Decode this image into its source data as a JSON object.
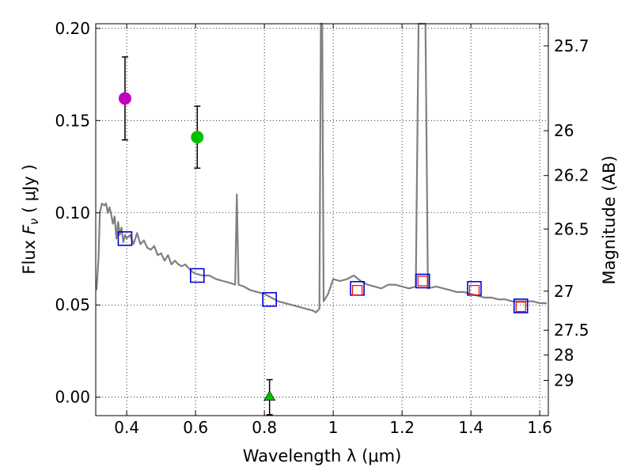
{
  "chart_data": {
    "type": "scatter",
    "title": "",
    "xlabel": "Wavelength  λ (μm)",
    "ylabel": "Flux  F_ν  ( μJy )",
    "ylabel_parts": {
      "pre": "Flux  ",
      "sym": "F",
      "sub": "ν",
      "post": "  ( μJy )"
    },
    "y2label": "Magnitude (AB)",
    "xlim": [
      0.31,
      1.625
    ],
    "ylim": [
      -0.01,
      0.2025
    ],
    "grid": true,
    "xticks": [
      0.4,
      0.6,
      0.8,
      1.0,
      1.2,
      1.4,
      1.6
    ],
    "xtick_labels": [
      "0.4",
      "0.6",
      "0.8",
      "1",
      "1.2",
      "1.4",
      "1.6"
    ],
    "yticks": [
      0.0,
      0.05,
      0.1,
      0.15,
      0.2
    ],
    "ytick_labels": [
      "0.00",
      "0.05",
      "0.10",
      "0.15",
      "0.20"
    ],
    "mag_ticks": [
      {
        "label": "25.7",
        "flux": 0.1905
      },
      {
        "label": "26",
        "flux": 0.1445
      },
      {
        "label": "26.2",
        "flux": 0.1202
      },
      {
        "label": "26.5",
        "flux": 0.0912
      },
      {
        "label": "27",
        "flux": 0.0575
      },
      {
        "label": "27.5",
        "flux": 0.0363
      },
      {
        "label": "28",
        "flux": 0.0229
      },
      {
        "label": "29",
        "flux": 0.0091
      }
    ],
    "observed_points": [
      {
        "name": "purple-point",
        "x": 0.395,
        "y": 0.162,
        "err": 0.0225,
        "color": "#bf00bf",
        "marker": "circle"
      },
      {
        "name": "green-point",
        "x": 0.605,
        "y": 0.141,
        "err": 0.0168,
        "color": "#00c000",
        "marker": "circle"
      },
      {
        "name": "green-limit",
        "x": 0.815,
        "y": 0.0,
        "err": 0.0095,
        "color": "#00c000",
        "marker": "triangle"
      }
    ],
    "model_squares": [
      {
        "x": 0.395,
        "y": 0.086
      },
      {
        "x": 0.605,
        "y": 0.066
      },
      {
        "x": 0.815,
        "y": 0.053
      },
      {
        "x": 1.07,
        "y": 0.059
      },
      {
        "x": 1.26,
        "y": 0.063
      },
      {
        "x": 1.41,
        "y": 0.059
      },
      {
        "x": 1.545,
        "y": 0.0495
      }
    ],
    "filter_squares": [
      {
        "x": 1.07,
        "y": 0.058
      },
      {
        "x": 1.26,
        "y": 0.063
      },
      {
        "x": 1.41,
        "y": 0.058
      },
      {
        "x": 1.545,
        "y": 0.049
      }
    ],
    "template_spectrum": {
      "color": "#808080",
      "points": [
        [
          0.312,
          0.058
        ],
        [
          0.318,
          0.075
        ],
        [
          0.322,
          0.1
        ],
        [
          0.328,
          0.105
        ],
        [
          0.335,
          0.104
        ],
        [
          0.34,
          0.105
        ],
        [
          0.345,
          0.1
        ],
        [
          0.35,
          0.103
        ],
        [
          0.355,
          0.099
        ],
        [
          0.36,
          0.094
        ],
        [
          0.365,
          0.098
        ],
        [
          0.37,
          0.086
        ],
        [
          0.375,
          0.095
        ],
        [
          0.38,
          0.088
        ],
        [
          0.385,
          0.092
        ],
        [
          0.39,
          0.084
        ],
        [
          0.395,
          0.088
        ],
        [
          0.4,
          0.086
        ],
        [
          0.41,
          0.088
        ],
        [
          0.42,
          0.083
        ],
        [
          0.43,
          0.089
        ],
        [
          0.44,
          0.083
        ],
        [
          0.45,
          0.085
        ],
        [
          0.46,
          0.081
        ],
        [
          0.47,
          0.08
        ],
        [
          0.48,
          0.082
        ],
        [
          0.49,
          0.077
        ],
        [
          0.5,
          0.078
        ],
        [
          0.51,
          0.074
        ],
        [
          0.52,
          0.077
        ],
        [
          0.53,
          0.072
        ],
        [
          0.54,
          0.074
        ],
        [
          0.55,
          0.072
        ],
        [
          0.56,
          0.071
        ],
        [
          0.57,
          0.072
        ],
        [
          0.58,
          0.07
        ],
        [
          0.59,
          0.068
        ],
        [
          0.6,
          0.067
        ],
        [
          0.62,
          0.066
        ],
        [
          0.64,
          0.066
        ],
        [
          0.66,
          0.064
        ],
        [
          0.68,
          0.063
        ],
        [
          0.7,
          0.062
        ],
        [
          0.715,
          0.061
        ],
        [
          0.72,
          0.11
        ],
        [
          0.725,
          0.061
        ],
        [
          0.74,
          0.06
        ],
        [
          0.76,
          0.058
        ],
        [
          0.78,
          0.057
        ],
        [
          0.8,
          0.056
        ],
        [
          0.82,
          0.054
        ],
        [
          0.84,
          0.052
        ],
        [
          0.86,
          0.051
        ],
        [
          0.88,
          0.05
        ],
        [
          0.9,
          0.049
        ],
        [
          0.92,
          0.048
        ],
        [
          0.94,
          0.047
        ],
        [
          0.95,
          0.046
        ],
        [
          0.96,
          0.048
        ],
        [
          0.964,
          0.2025
        ],
        [
          0.968,
          0.2025
        ],
        [
          0.972,
          0.052
        ],
        [
          0.985,
          0.056
        ],
        [
          1.0,
          0.064
        ],
        [
          1.02,
          0.063
        ],
        [
          1.04,
          0.064
        ],
        [
          1.06,
          0.066
        ],
        [
          1.08,
          0.063
        ],
        [
          1.1,
          0.061
        ],
        [
          1.12,
          0.06
        ],
        [
          1.14,
          0.059
        ],
        [
          1.16,
          0.061
        ],
        [
          1.18,
          0.061
        ],
        [
          1.2,
          0.06
        ],
        [
          1.22,
          0.059
        ],
        [
          1.24,
          0.06
        ],
        [
          1.248,
          0.2025
        ],
        [
          1.268,
          0.2025
        ],
        [
          1.275,
          0.059
        ],
        [
          1.3,
          0.06
        ],
        [
          1.32,
          0.059
        ],
        [
          1.34,
          0.058
        ],
        [
          1.36,
          0.057
        ],
        [
          1.38,
          0.057
        ],
        [
          1.4,
          0.056
        ],
        [
          1.42,
          0.055
        ],
        [
          1.44,
          0.054
        ],
        [
          1.46,
          0.054
        ],
        [
          1.48,
          0.053
        ],
        [
          1.5,
          0.053
        ],
        [
          1.52,
          0.052
        ],
        [
          1.54,
          0.052
        ],
        [
          1.56,
          0.052
        ],
        [
          1.58,
          0.052
        ],
        [
          1.6,
          0.051
        ],
        [
          1.62,
          0.051
        ]
      ]
    }
  }
}
